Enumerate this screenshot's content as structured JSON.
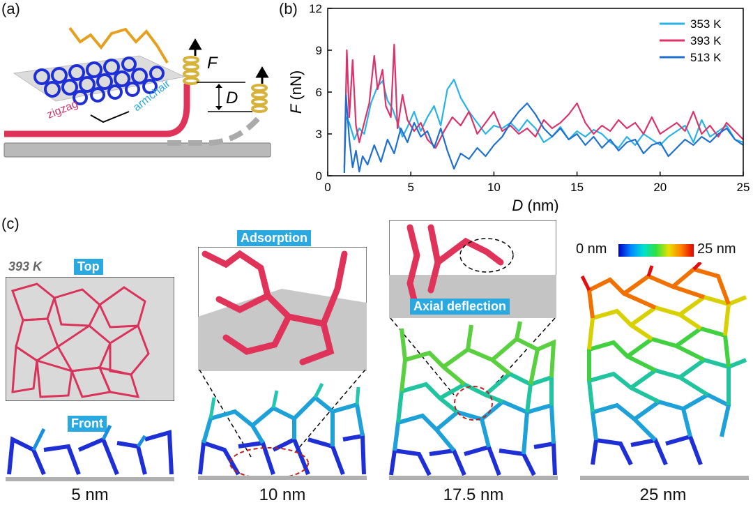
{
  "panel_a": {
    "label": "(a)",
    "force_label": "F",
    "distance_label": "D",
    "zigzag": "zigzag",
    "armchair": "armchair",
    "colors": {
      "polymer": "#e0335a",
      "substrate": "#b8b8b8",
      "network": "#1f2fd6",
      "spring": "#d6b23a"
    }
  },
  "panel_b": {
    "label": "(b)",
    "chart_data": {
      "type": "line",
      "xlabel_symbol": "D",
      "xlabel_unit": " (nm)",
      "ylabel_symbol": "F",
      "ylabel_unit": " (nN)",
      "xlim": [
        0,
        25
      ],
      "ylim": [
        0,
        12
      ],
      "xticks": [
        0,
        5,
        10,
        15,
        20,
        25
      ],
      "yticks": [
        0,
        3,
        6,
        9,
        12
      ],
      "legend_position": "top-right",
      "series": [
        {
          "name": "353 K",
          "color": "#29b2e6",
          "x": [
            1.0,
            1.1,
            1.3,
            1.6,
            1.9,
            2.2,
            2.6,
            3.0,
            3.3,
            3.6,
            3.9,
            4.2,
            4.5,
            4.8,
            5.2,
            5.6,
            6.0,
            6.4,
            6.8,
            7.2,
            7.6,
            8.0,
            8.5,
            9.0,
            9.5,
            10.0,
            10.5,
            11.0,
            11.5,
            12.0,
            12.5,
            13.0,
            13.5,
            14.0,
            14.5,
            15.0,
            15.5,
            16.0,
            16.5,
            17.0,
            17.5,
            18.0,
            18.5,
            19.0,
            19.5,
            20.0,
            20.5,
            21.0,
            21.5,
            22.0,
            22.5,
            23.0,
            23.5,
            24.0,
            24.5,
            25.0
          ],
          "y": [
            0.5,
            4.2,
            3.8,
            2.6,
            3.4,
            3.0,
            5.2,
            6.4,
            6.8,
            5.4,
            4.8,
            3.8,
            2.8,
            3.5,
            4.6,
            3.2,
            4.2,
            5.0,
            3.6,
            6.2,
            6.9,
            5.6,
            4.6,
            3.8,
            3.0,
            3.6,
            3.4,
            3.8,
            3.2,
            4.0,
            3.4,
            2.4,
            2.8,
            3.5,
            2.6,
            3.2,
            2.8,
            3.3,
            3.0,
            2.4,
            2.0,
            2.8,
            2.2,
            3.0,
            2.6,
            2.2,
            2.8,
            3.2,
            3.6,
            2.4,
            4.0,
            2.8,
            3.2,
            3.6,
            2.6,
            2.4
          ]
        },
        {
          "name": "393 K",
          "color": "#d9336a",
          "x": [
            1.0,
            1.15,
            1.3,
            1.5,
            1.7,
            1.9,
            2.2,
            2.5,
            2.8,
            3.0,
            3.3,
            3.5,
            3.8,
            4.0,
            4.2,
            4.5,
            4.8,
            5.2,
            5.6,
            6.0,
            6.5,
            7.0,
            7.5,
            8.0,
            8.5,
            9.0,
            9.5,
            10.0,
            10.5,
            11.0,
            11.5,
            12.0,
            12.5,
            13.0,
            13.5,
            14.0,
            14.5,
            15.0,
            15.5,
            16.0,
            16.5,
            17.0,
            17.5,
            18.0,
            18.5,
            19.0,
            19.5,
            20.0,
            20.5,
            21.0,
            21.5,
            22.0,
            22.5,
            23.0,
            23.5,
            24.0,
            24.5,
            25.0
          ],
          "y": [
            0.6,
            9.0,
            4.2,
            8.3,
            3.6,
            2.4,
            3.8,
            5.2,
            8.6,
            6.2,
            7.6,
            5.0,
            4.2,
            9.4,
            3.4,
            5.8,
            4.0,
            3.2,
            3.8,
            2.6,
            2.0,
            3.2,
            4.2,
            3.6,
            4.6,
            3.0,
            3.8,
            4.6,
            3.2,
            3.6,
            3.0,
            3.4,
            2.8,
            4.0,
            3.4,
            3.8,
            4.4,
            5.2,
            3.8,
            3.0,
            3.6,
            3.2,
            4.0,
            3.4,
            3.8,
            3.0,
            4.2,
            3.0,
            3.4,
            3.8,
            3.2,
            4.6,
            3.0,
            3.6,
            2.8,
            3.8,
            3.2,
            2.6
          ]
        },
        {
          "name": "513 K",
          "color": "#1e6fd0",
          "x": [
            1.0,
            1.1,
            1.3,
            1.5,
            1.7,
            1.9,
            2.1,
            2.4,
            2.8,
            3.2,
            3.6,
            4.0,
            4.4,
            4.8,
            5.2,
            5.6,
            6.0,
            6.4,
            6.8,
            7.2,
            7.6,
            8.0,
            8.5,
            9.0,
            9.5,
            10.0,
            10.5,
            11.0,
            11.5,
            12.0,
            12.5,
            13.0,
            13.5,
            14.0,
            14.5,
            15.0,
            15.5,
            16.0,
            16.5,
            17.0,
            17.5,
            18.0,
            18.5,
            19.0,
            19.5,
            20.0,
            20.5,
            21.0,
            21.5,
            22.0,
            22.5,
            23.0,
            23.5,
            24.0,
            24.5,
            25.0
          ],
          "y": [
            0.2,
            5.8,
            2.6,
            0.6,
            1.8,
            0.3,
            1.4,
            0.8,
            2.2,
            1.0,
            2.6,
            1.6,
            3.4,
            2.4,
            3.8,
            2.8,
            3.2,
            2.0,
            3.4,
            1.8,
            0.5,
            1.6,
            1.2,
            2.0,
            1.4,
            2.2,
            2.8,
            3.8,
            4.6,
            5.2,
            4.4,
            3.4,
            2.8,
            3.4,
            2.6,
            3.0,
            2.2,
            2.8,
            2.0,
            2.6,
            1.8,
            2.4,
            2.6,
            1.6,
            2.2,
            2.4,
            1.4,
            2.0,
            2.6,
            2.2,
            2.8,
            2.4,
            3.0,
            3.4,
            2.6,
            2.2
          ]
        }
      ]
    }
  },
  "panel_c": {
    "label": "(c)",
    "temperature": "393 K",
    "top_tag": "Top",
    "front_tag": "Front",
    "adsorption_tag": "Adsorption",
    "deflection_tag": "Axial deflection",
    "colorbar_min": "0 nm",
    "colorbar_max": "25 nm",
    "captions": [
      "5 nm",
      "10 nm",
      "17.5 nm",
      "25 nm"
    ]
  }
}
